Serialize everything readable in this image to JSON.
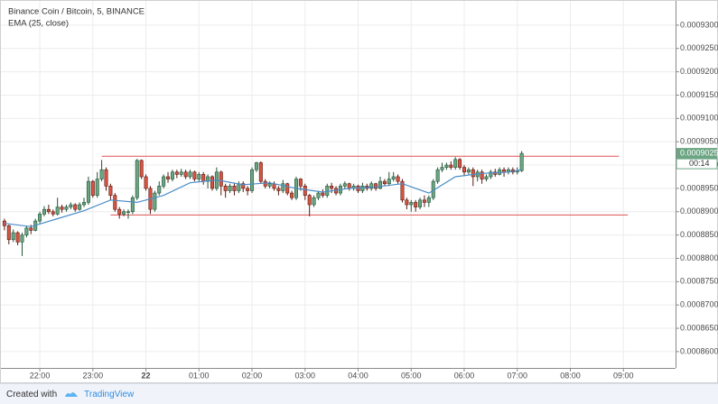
{
  "chart_data": {
    "type": "candlestick",
    "title": "Binance Coin / Bitcoin, 5, BINANCE",
    "x": [
      "21:20",
      "21:25",
      "21:30",
      "21:35",
      "21:40",
      "21:45",
      "21:50",
      "21:55",
      "22:00",
      "22:05",
      "22:10",
      "22:15",
      "22:20",
      "22:25",
      "22:30",
      "22:35",
      "22:40",
      "22:45",
      "22:50",
      "22:55",
      "23:00",
      "23:05",
      "23:10",
      "23:15",
      "23:20",
      "23:25",
      "23:30",
      "23:35",
      "23:40",
      "23:45",
      "23:50",
      "23:55",
      "00:00",
      "00:05",
      "00:10",
      "00:15",
      "00:20",
      "00:25",
      "00:30",
      "00:35",
      "00:40",
      "00:45",
      "00:50",
      "00:55",
      "01:00",
      "01:05",
      "01:10",
      "01:15",
      "01:20",
      "01:25",
      "01:30",
      "01:35",
      "01:40",
      "01:45",
      "01:50",
      "01:55",
      "02:00",
      "02:05",
      "02:10",
      "02:15",
      "02:20",
      "02:25",
      "02:30",
      "02:35",
      "02:40",
      "02:45",
      "02:50",
      "02:55",
      "03:00",
      "03:05",
      "03:10",
      "03:15",
      "03:20",
      "03:25",
      "03:30",
      "03:35",
      "03:40",
      "03:45",
      "03:50",
      "03:55",
      "04:00",
      "04:05",
      "04:10",
      "04:15",
      "04:20",
      "04:25",
      "04:30",
      "04:35",
      "04:40",
      "04:45",
      "04:50",
      "04:55",
      "05:00",
      "05:05",
      "05:10",
      "05:15",
      "05:20",
      "05:25",
      "05:30",
      "05:35",
      "05:40",
      "05:45",
      "05:50",
      "05:55",
      "06:00",
      "06:05",
      "06:10",
      "06:15",
      "06:20",
      "06:25",
      "06:30",
      "06:35",
      "06:40",
      "06:45",
      "06:50",
      "06:55",
      "07:00",
      "07:05"
    ],
    "open": [
      0.000888,
      0.000887,
      0.000884,
      0.0008855,
      0.0008835,
      0.000885,
      0.0008865,
      0.000886,
      0.000888,
      0.0008895,
      0.0008905,
      0.00089,
      0.0008895,
      0.000891,
      0.0008905,
      0.000891,
      0.0008915,
      0.0008905,
      0.0008915,
      0.000892,
      0.0008965,
      0.0008935,
      0.000897,
      0.000899,
      0.0008955,
      0.0008935,
      0.0008905,
      0.0008895,
      0.00089,
      0.00089,
      0.000893,
      0.000901,
      0.0008975,
      0.000895,
      0.0008905,
      0.000894,
      0.0008955,
      0.0008975,
      0.000897,
      0.0008985,
      0.000898,
      0.0008985,
      0.0008975,
      0.0008985,
      0.000897,
      0.000898,
      0.0008965,
      0.0008975,
      0.000895,
      0.0008985,
      0.0008955,
      0.0008945,
      0.0008955,
      0.0008945,
      0.000896,
      0.000895,
      0.0008945,
      0.000899,
      0.0009005,
      0.0008965,
      0.0008955,
      0.000896,
      0.000895,
      0.0008945,
      0.000896,
      0.000894,
      0.000893,
      0.000897,
      0.0008955,
      0.0008935,
      0.0008915,
      0.000893,
      0.000894,
      0.0008935,
      0.0008955,
      0.000895,
      0.000894,
      0.0008955,
      0.000896,
      0.000895,
      0.0008955,
      0.0008945,
      0.0008955,
      0.000895,
      0.000896,
      0.000895,
      0.0008965,
      0.000896,
      0.000897,
      0.0008975,
      0.0008965,
      0.0008925,
      0.0008915,
      0.000892,
      0.000891,
      0.0008925,
      0.000892,
      0.000893,
      0.0008965,
      0.000899,
      0.0008995,
      0.0009,
      0.0008995,
      0.0009012,
      0.0008995,
      0.0008985,
      0.000899,
      0.0008975,
      0.0008985,
      0.000897,
      0.0008975,
      0.0008985,
      0.000898,
      0.000899,
      0.0008985,
      0.000899,
      0.0008985,
      0.0008988
    ],
    "high": [
      0.0008885,
      0.0008872,
      0.0008862,
      0.0008858,
      0.0008855,
      0.000887,
      0.0008872,
      0.0008885,
      0.00089,
      0.0008912,
      0.0008915,
      0.0008905,
      0.000893,
      0.0008915,
      0.0008915,
      0.000892,
      0.0008918,
      0.000892,
      0.000893,
      0.0008975,
      0.0008968,
      0.0008985,
      0.0009011,
      0.0008995,
      0.000896,
      0.000894,
      0.000891,
      0.0008905,
      0.0008905,
      0.0008935,
      0.0009013,
      0.0009012,
      0.000898,
      0.0008955,
      0.0008945,
      0.0008965,
      0.000898,
      0.0008985,
      0.000899,
      0.000899,
      0.0008992,
      0.000899,
      0.000899,
      0.0008988,
      0.0008985,
      0.0008985,
      0.000898,
      0.0008978,
      0.0008995,
      0.0008988,
      0.000896,
      0.000896,
      0.0008962,
      0.0008965,
      0.0008965,
      0.0008955,
      0.0008995,
      0.0009007,
      0.0009008,
      0.000897,
      0.0008965,
      0.0008965,
      0.0008955,
      0.0008968,
      0.0008962,
      0.0008945,
      0.0008975,
      0.0008972,
      0.000896,
      0.0008938,
      0.0008935,
      0.0008945,
      0.0008948,
      0.000896,
      0.0008962,
      0.0008955,
      0.000896,
      0.0008965,
      0.0008962,
      0.000896,
      0.0008958,
      0.0008962,
      0.000896,
      0.0008965,
      0.0008962,
      0.0008975,
      0.000897,
      0.0008985,
      0.0008985,
      0.000898,
      0.000897,
      0.000893,
      0.0008925,
      0.0008925,
      0.000893,
      0.0008935,
      0.0008935,
      0.000897,
      0.0008995,
      0.0009005,
      0.0009005,
      0.0009008,
      0.0009017,
      0.0009015,
      0.0009,
      0.0008995,
      0.0008995,
      0.000899,
      0.000899,
      0.000898,
      0.000899,
      0.0008992,
      0.0008995,
      0.0008995,
      0.0008995,
      0.0008995,
      0.0008995,
      0.000903
    ],
    "low": [
      0.000886,
      0.000883,
      0.0008835,
      0.0008828,
      0.0008805,
      0.0008845,
      0.0008852,
      0.0008858,
      0.0008875,
      0.000889,
      0.0008895,
      0.000889,
      0.0008892,
      0.0008898,
      0.00089,
      0.0008905,
      0.00089,
      0.0008902,
      0.000891,
      0.0008915,
      0.000893,
      0.000893,
      0.0008965,
      0.0008945,
      0.0008925,
      0.00089,
      0.0008885,
      0.000889,
      0.0008885,
      0.0008895,
      0.0008925,
      0.000897,
      0.0008945,
      0.0008895,
      0.00089,
      0.0008935,
      0.000895,
      0.0008962,
      0.0008965,
      0.0008972,
      0.0008975,
      0.000897,
      0.000897,
      0.0008965,
      0.0008965,
      0.0008958,
      0.000895,
      0.0008945,
      0.0008945,
      0.0008935,
      0.000893,
      0.000894,
      0.0008935,
      0.000894,
      0.0008942,
      0.0008935,
      0.000894,
      0.0008985,
      0.000896,
      0.000895,
      0.000895,
      0.0008945,
      0.0008935,
      0.000894,
      0.0008935,
      0.0008925,
      0.0008925,
      0.0008945,
      0.0008925,
      0.000889,
      0.000891,
      0.0008925,
      0.000893,
      0.000893,
      0.000894,
      0.0008935,
      0.0008935,
      0.0008948,
      0.0008945,
      0.0008945,
      0.000894,
      0.000894,
      0.0008945,
      0.0008945,
      0.0008945,
      0.0008948,
      0.0008955,
      0.0008955,
      0.0008965,
      0.000896,
      0.000892,
      0.0008905,
      0.00089,
      0.00089,
      0.0008905,
      0.000891,
      0.000891,
      0.0008925,
      0.000896,
      0.0008985,
      0.000899,
      0.000899,
      0.000899,
      0.000899,
      0.0008978,
      0.000898,
      0.0008955,
      0.0008965,
      0.000896,
      0.0008965,
      0.000897,
      0.0008975,
      0.0008978,
      0.0008975,
      0.000898,
      0.000898,
      0.000898,
      0.0008985
    ],
    "close": [
      0.000887,
      0.000884,
      0.0008855,
      0.0008835,
      0.000885,
      0.0008865,
      0.000886,
      0.000888,
      0.0008895,
      0.0008905,
      0.00089,
      0.0008895,
      0.000891,
      0.0008905,
      0.000891,
      0.0008915,
      0.0008905,
      0.0008915,
      0.000892,
      0.0008965,
      0.0008935,
      0.000897,
      0.000899,
      0.0008955,
      0.0008935,
      0.0008905,
      0.0008895,
      0.00089,
      0.00089,
      0.000893,
      0.000901,
      0.0008975,
      0.000895,
      0.0008905,
      0.000894,
      0.0008955,
      0.0008975,
      0.000897,
      0.0008985,
      0.000898,
      0.0008985,
      0.0008975,
      0.0008985,
      0.000897,
      0.000898,
      0.0008965,
      0.0008975,
      0.000895,
      0.0008985,
      0.0008955,
      0.0008945,
      0.0008955,
      0.0008945,
      0.000896,
      0.000895,
      0.0008945,
      0.000899,
      0.0009005,
      0.0008965,
      0.0008955,
      0.000896,
      0.000895,
      0.0008945,
      0.000896,
      0.000894,
      0.000893,
      0.000897,
      0.0008955,
      0.0008935,
      0.0008915,
      0.000893,
      0.000894,
      0.0008935,
      0.0008955,
      0.000895,
      0.000894,
      0.0008955,
      0.000896,
      0.000895,
      0.0008955,
      0.0008945,
      0.0008955,
      0.000895,
      0.000896,
      0.000895,
      0.0008965,
      0.000896,
      0.000897,
      0.0008975,
      0.0008965,
      0.0008925,
      0.0008915,
      0.000892,
      0.000891,
      0.0008925,
      0.000892,
      0.000893,
      0.0008965,
      0.000899,
      0.0008995,
      0.0009,
      0.0008995,
      0.0009012,
      0.0008995,
      0.0008985,
      0.000899,
      0.0008975,
      0.0008985,
      0.000897,
      0.0008975,
      0.0008985,
      0.000898,
      0.000899,
      0.0008985,
      0.000899,
      0.0008985,
      0.0008988,
      0.0009025
    ],
    "up_color": "#6ba583",
    "down_color": "#d75442",
    "up_border": "#225437",
    "down_border": "#5b1a13",
    "ema": {
      "name": "EMA (25, close)",
      "color": "#4a8cc7",
      "x": [
        "21:20",
        "21:50",
        "22:20",
        "22:50",
        "23:20",
        "23:50",
        "00:20",
        "00:50",
        "01:20",
        "01:50",
        "02:20",
        "02:50",
        "03:20",
        "03:50",
        "04:20",
        "04:50",
        "05:20",
        "05:50",
        "06:20",
        "06:50",
        "07:05"
      ],
      "values": [
        0.0008875,
        0.0008868,
        0.0008885,
        0.0008902,
        0.0008925,
        0.000892,
        0.0008935,
        0.0008962,
        0.0008968,
        0.0008958,
        0.0008962,
        0.000895,
        0.0008942,
        0.000895,
        0.0008953,
        0.000896,
        0.000894,
        0.0008975,
        0.0008982,
        0.0008985,
        0.000899
      ]
    },
    "hlines": [
      {
        "value": 0.0009019,
        "x": [
          "23:10",
          "08:55"
        ],
        "color": "#e05252"
      },
      {
        "value": 0.0008893,
        "x": [
          "23:20",
          "09:05"
        ],
        "color": "#e05252"
      }
    ],
    "xlim": [
      "21:16",
      "09:59"
    ],
    "ylim": [
      0.0008565,
      0.0009352
    ],
    "yticks": [
      {
        "value": 0.00086,
        "label": "0.0008600"
      },
      {
        "value": 0.000865,
        "label": "0.0008650"
      },
      {
        "value": 0.00087,
        "label": "0.0008700"
      },
      {
        "value": 0.000875,
        "label": "0.0008750"
      },
      {
        "value": 0.00088,
        "label": "0.0008800"
      },
      {
        "value": 0.000885,
        "label": "0.0008850"
      },
      {
        "value": 0.00089,
        "label": "0.0008900"
      },
      {
        "value": 0.000895,
        "label": "0.0008950"
      },
      {
        "value": 0.0009,
        "label": "0.0009000"
      },
      {
        "value": 0.000905,
        "label": "0.0009050"
      },
      {
        "value": 0.00091,
        "label": "0.0009100"
      },
      {
        "value": 0.000915,
        "label": "0.0009150"
      },
      {
        "value": 0.00092,
        "label": "0.0009200"
      },
      {
        "value": 0.000925,
        "label": "0.0009250"
      },
      {
        "value": 0.00093,
        "label": "0.0009300"
      }
    ],
    "xticks": [
      "22:00",
      "23:00",
      {
        "value": "00:00",
        "label": "22"
      },
      "01:00",
      "02:00",
      "03:00",
      "04:00",
      "05:00",
      "06:00",
      "07:00",
      "08:00",
      "09:00"
    ],
    "last_price_label": "0.0009025",
    "countdown": "00:14",
    "grid": true
  },
  "footer": {
    "text": "Created with",
    "brand": "TradingView"
  }
}
